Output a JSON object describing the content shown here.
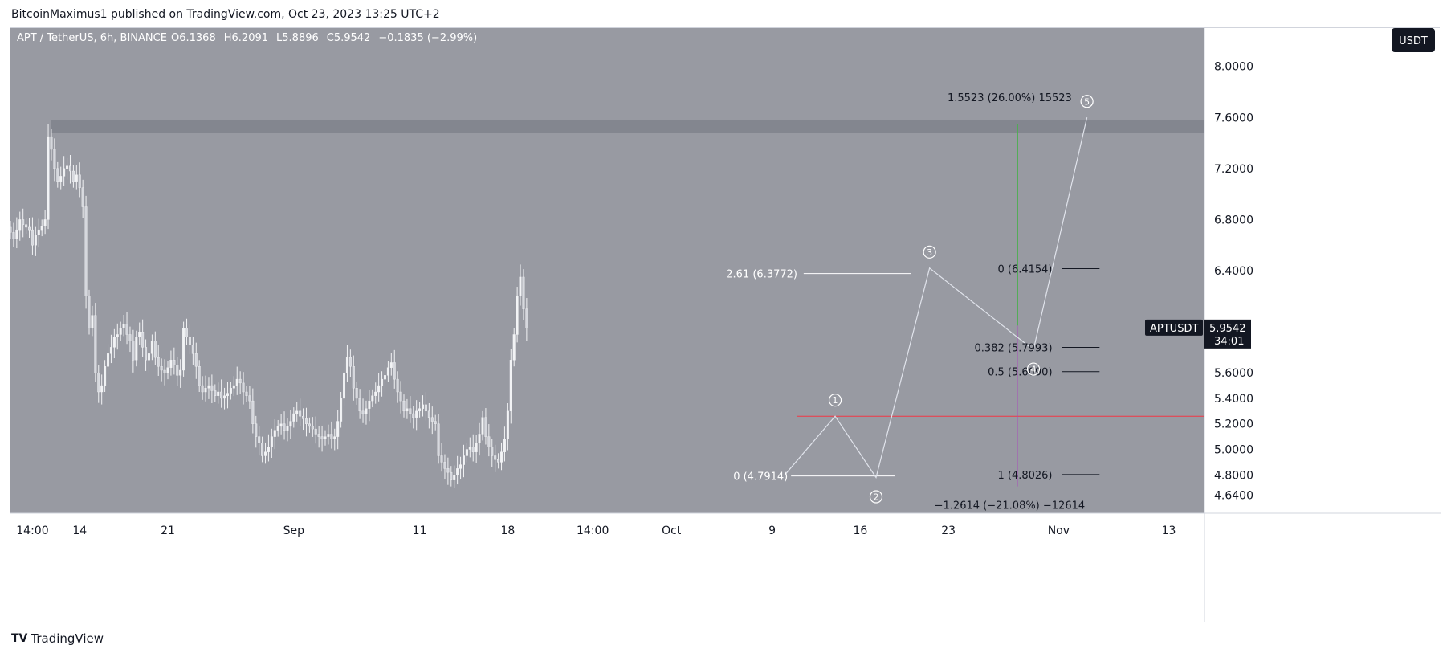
{
  "header": {
    "published_text": "BitcoinMaximus1 published on TradingView.com, Oct 23, 2023 13:25 UTC+2"
  },
  "footer": {
    "brand": "TradingView",
    "logo_mark": "TV"
  },
  "chart_data": {
    "type": "candlestick",
    "symbol": "APT / TetherUS, 6h, BINANCE",
    "ohlc": {
      "open_label": "O",
      "open": "6.1368",
      "high_label": "H",
      "high": "6.2091",
      "low_label": "L",
      "low": "5.8896",
      "close_label": "C",
      "close": "5.9542",
      "change": "−0.1835 (−2.99%)"
    },
    "currency_button": "USDT",
    "price_tag": {
      "ticker": "APTUSDT",
      "price": "5.9542",
      "countdown": "34:01"
    },
    "ylim": [
      4.5,
      8.3
    ],
    "y_ticks": [
      "8.0000",
      "7.6000",
      "7.2000",
      "6.8000",
      "6.4000",
      "5.6000",
      "5.4000",
      "5.2000",
      "5.0000",
      "4.8000",
      "4.6400"
    ],
    "y_tick_values": [
      8.0,
      7.6,
      7.2,
      6.8,
      6.4,
      5.6,
      5.4,
      5.2,
      5.0,
      4.8,
      4.64
    ],
    "x_ticks": [
      {
        "label": "14:00",
        "bar": 7
      },
      {
        "label": "14",
        "bar": 22
      },
      {
        "label": "21",
        "bar": 50
      },
      {
        "label": "Sep",
        "bar": 90
      },
      {
        "label": "11",
        "bar": 130
      },
      {
        "label": "18",
        "bar": 158
      },
      {
        "label": "14:00",
        "bar": 185
      },
      {
        "label": "Oct",
        "bar": 210
      },
      {
        "label": "9",
        "bar": 242
      },
      {
        "label": "16",
        "bar": 270
      },
      {
        "label": "23",
        "bar": 298
      },
      {
        "label": "Nov",
        "bar": 333
      },
      {
        "label": "13",
        "bar": 368
      }
    ],
    "closes": [
      6.7,
      6.65,
      6.72,
      6.8,
      6.76,
      6.74,
      6.72,
      6.6,
      6.68,
      6.72,
      6.75,
      6.8,
      7.45,
      7.35,
      7.2,
      7.1,
      7.14,
      7.2,
      7.22,
      7.18,
      7.1,
      7.15,
      7.05,
      6.9,
      6.2,
      5.95,
      6.05,
      5.6,
      5.45,
      5.5,
      5.65,
      5.75,
      5.8,
      5.88,
      5.9,
      5.95,
      5.98,
      5.9,
      5.85,
      5.7,
      5.88,
      5.92,
      5.8,
      5.7,
      5.75,
      5.85,
      5.72,
      5.65,
      5.62,
      5.6,
      5.64,
      5.7,
      5.66,
      5.58,
      5.62,
      5.95,
      5.88,
      5.82,
      5.75,
      5.65,
      5.5,
      5.45,
      5.48,
      5.5,
      5.46,
      5.42,
      5.45,
      5.4,
      5.42,
      5.44,
      5.48,
      5.5,
      5.55,
      5.52,
      5.45,
      5.42,
      5.38,
      5.2,
      5.1,
      5.05,
      4.95,
      4.98,
      5.02,
      5.1,
      5.15,
      5.18,
      5.2,
      5.15,
      5.18,
      5.22,
      5.28,
      5.3,
      5.26,
      5.24,
      5.2,
      5.18,
      5.16,
      5.12,
      5.1,
      5.08,
      5.1,
      5.12,
      5.08,
      5.1,
      5.22,
      5.4,
      5.6,
      5.72,
      5.65,
      5.48,
      5.4,
      5.3,
      5.28,
      5.32,
      5.38,
      5.42,
      5.45,
      5.5,
      5.55,
      5.58,
      5.64,
      5.68,
      5.55,
      5.45,
      5.38,
      5.3,
      5.32,
      5.28,
      5.25,
      5.3,
      5.32,
      5.35,
      5.3,
      5.25,
      5.22,
      5.2,
      4.95,
      4.9,
      4.85,
      4.82,
      4.76,
      4.8,
      4.85,
      4.88,
      4.95,
      5.0,
      5.02,
      4.98,
      5.05,
      5.12,
      5.25,
      5.1,
      5.02,
      4.95,
      4.92,
      4.9,
      4.98,
      5.08,
      5.3,
      5.7,
      5.9,
      6.2,
      6.35,
      6.1,
      5.95
    ],
    "resistance_zone": {
      "low": 7.48,
      "high": 7.58
    },
    "horizontal_line": {
      "value": 5.26,
      "color": "#f23645"
    },
    "fib_left": [
      {
        "label": "2.61 (6.3772)",
        "value": 6.3772
      },
      {
        "label": "0 (4.7914)",
        "value": 4.7914
      }
    ],
    "fib_right": [
      {
        "label": "0 (6.4154)",
        "value": 6.4154
      },
      {
        "label": "0.382 (5.7993)",
        "value": 5.7993
      },
      {
        "label": "0.5 (5.6090)",
        "value": 5.609
      },
      {
        "label": "1 (4.8026)",
        "value": 4.8026
      }
    ],
    "measure_up": {
      "label": "1.5523 (26.00%) 15523",
      "bar": 320,
      "from": 5.97,
      "to": 7.55,
      "color": "#4caf50"
    },
    "measure_down": {
      "label": "−1.2614 (−21.08%) −12614",
      "bar": 320,
      "from": 5.97,
      "to": 4.71,
      "color": "#ab47bc"
    },
    "waves": [
      {
        "label": "1",
        "bar": 262,
        "value": 5.26,
        "pos": "above"
      },
      {
        "label": "2",
        "bar": 275,
        "value": 4.78,
        "pos": "below"
      },
      {
        "label": "3",
        "bar": 292,
        "value": 6.42,
        "pos": "above"
      },
      {
        "label": "4",
        "bar": 325,
        "value": 5.78,
        "pos": "below"
      },
      {
        "label": "5",
        "bar": 342,
        "value": 7.6,
        "pos": "above"
      }
    ],
    "colors": {
      "pane": "#989aa2",
      "candle": "#f2f3f5",
      "wave_line": "#e0e3eb",
      "zone": "#787b86",
      "text_dark": "#131722",
      "price_tag_bg": "#131722"
    }
  }
}
